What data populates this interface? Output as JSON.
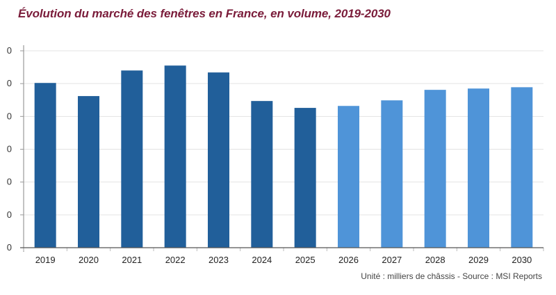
{
  "chart_data": {
    "type": "bar",
    "title": "Évolution du marché des fenêtres en France, en volume, 2019-2030",
    "xlabel": "",
    "ylabel": "",
    "note": "Unité : milliers de châssis - Source : MSI Reports",
    "categories": [
      "2019",
      "2020",
      "2021",
      "2022",
      "2023",
      "2024",
      "2025",
      "2026",
      "2027",
      "2028",
      "2029",
      "2030"
    ],
    "values_unit": "gridline intervals (y tick labels clipped, not legible)",
    "values": [
      5.02,
      4.62,
      5.4,
      5.55,
      5.34,
      4.47,
      4.26,
      4.32,
      4.49,
      4.81,
      4.85,
      4.89
    ],
    "series_type": [
      "historical",
      "historical",
      "historical",
      "historical",
      "historical",
      "historical",
      "historical",
      "forecast",
      "forecast",
      "forecast",
      "forecast",
      "forecast"
    ],
    "ylim": [
      0,
      6
    ],
    "yticks": [
      0,
      1,
      2,
      3,
      4,
      5,
      6
    ],
    "ytick_labels_visible": false,
    "grid": true,
    "legend": "none",
    "colors": {
      "historical": "#215f9a",
      "forecast": "#4f94d8",
      "title": "#7a1c3a",
      "grid": "#e3e3e3",
      "axis": "#999999"
    }
  }
}
